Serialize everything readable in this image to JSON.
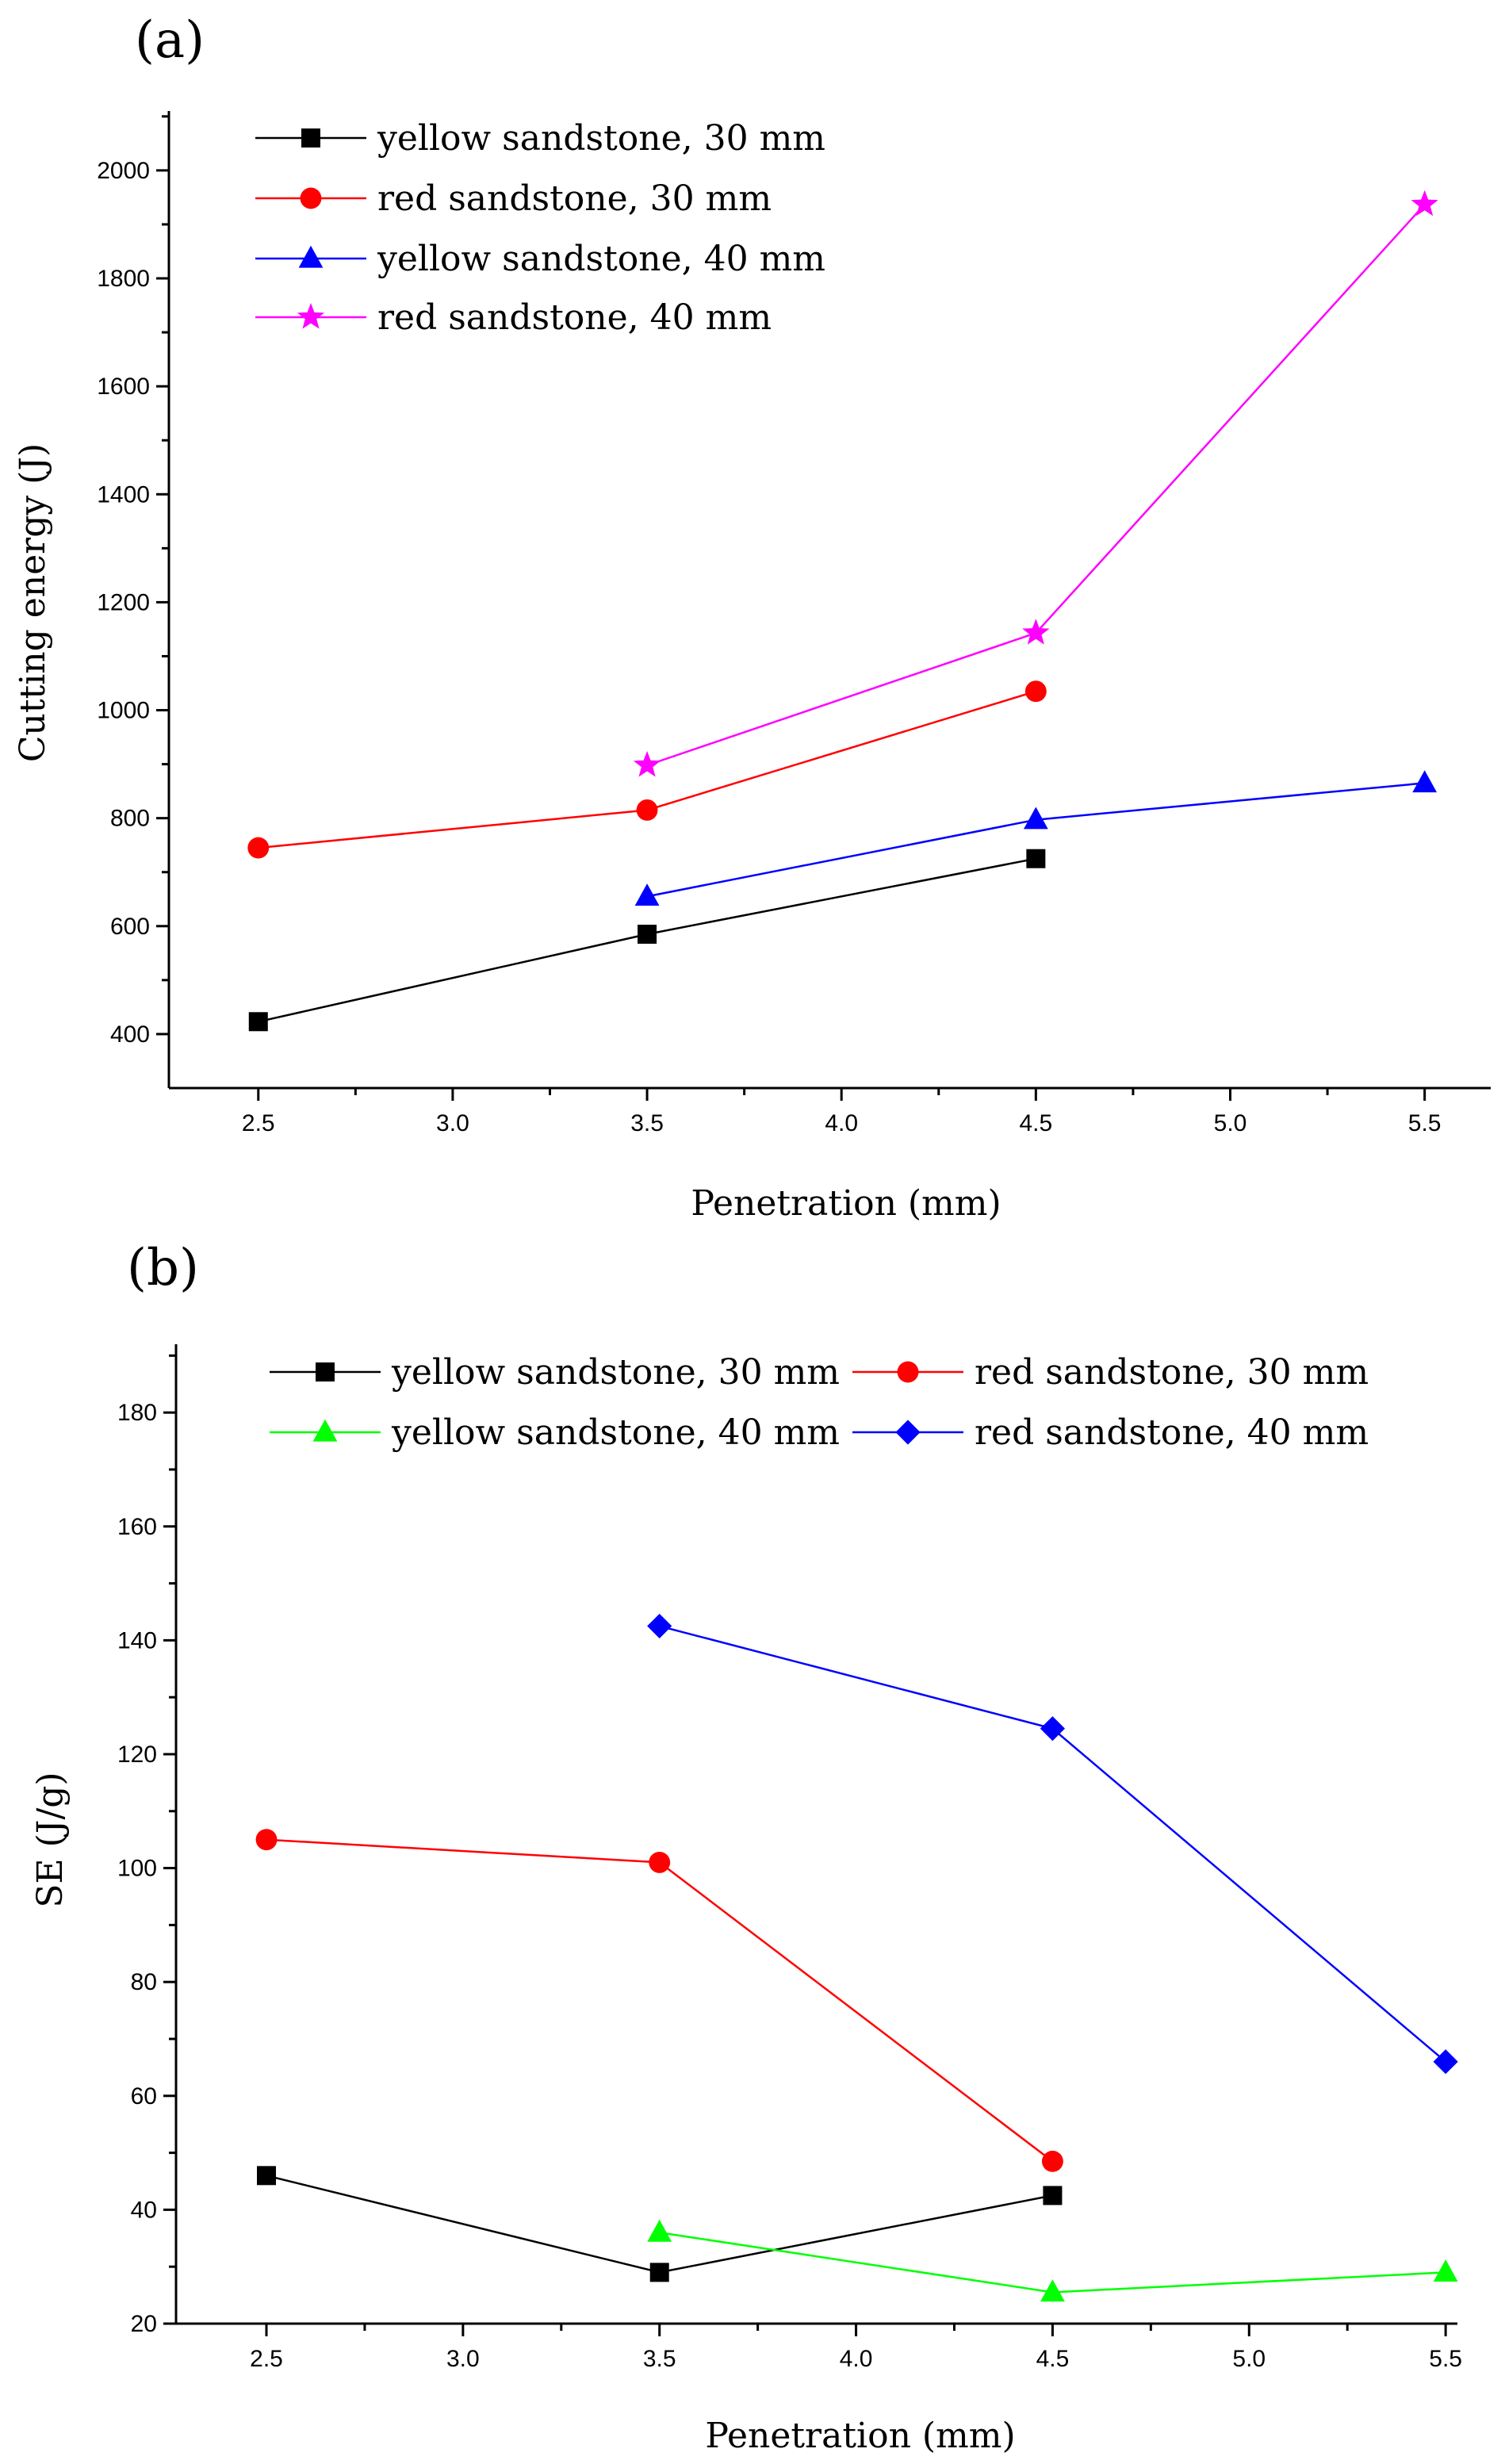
{
  "chart_data": [
    {
      "type": "line",
      "panel_label": "(a)",
      "xlabel": "Penetration (mm)",
      "ylabel": "Cutting energy (J)",
      "xlim": [
        2.27,
        5.67
      ],
      "ylim": [
        300,
        2110
      ],
      "xticks": [
        2.5,
        3.0,
        3.5,
        4.0,
        4.5,
        5.0,
        5.5
      ],
      "xtick_labels": [
        "2.5",
        "3.0",
        "3.5",
        "4.0",
        "4.5",
        "5.0",
        "5.5"
      ],
      "yticks": [
        400,
        600,
        800,
        1000,
        1200,
        1400,
        1600,
        1800,
        2000
      ],
      "ytick_labels": [
        "400",
        "600",
        "800",
        "1000",
        "1200",
        "1400",
        "1600",
        "1800",
        "2000"
      ],
      "legend_position": "top-left",
      "series": [
        {
          "name": "yellow sandstone, 30 mm",
          "color": "#000000",
          "marker": "square",
          "x": [
            2.5,
            3.5,
            4.5
          ],
          "y": [
            423,
            585,
            725
          ]
        },
        {
          "name": "red sandstone, 30 mm",
          "color": "#ff0000",
          "marker": "circle",
          "x": [
            2.5,
            3.5,
            4.5
          ],
          "y": [
            745,
            815,
            1035
          ]
        },
        {
          "name": "yellow sandstone, 40 mm",
          "color": "#0000ff",
          "marker": "triangle",
          "x": [
            3.5,
            4.5,
            5.5
          ],
          "y": [
            655,
            797,
            865
          ]
        },
        {
          "name": "red sandstone, 40 mm",
          "color": "#ff00ff",
          "marker": "star",
          "x": [
            3.5,
            4.5,
            5.5
          ],
          "y": [
            898,
            1143,
            1937
          ]
        }
      ]
    },
    {
      "type": "line",
      "panel_label": "(b)",
      "xlabel": "Penetration (mm)",
      "ylabel": "SE (J/g)",
      "xlim": [
        2.27,
        5.53
      ],
      "ylim": [
        20,
        192
      ],
      "xticks": [
        2.5,
        3.0,
        3.5,
        4.0,
        4.5,
        5.0,
        5.5
      ],
      "xtick_labels": [
        "2.5",
        "3.0",
        "3.5",
        "4.0",
        "4.5",
        "5.0",
        "5.5"
      ],
      "yticks": [
        20,
        40,
        60,
        80,
        100,
        120,
        140,
        160,
        180
      ],
      "ytick_labels": [
        "20",
        "40",
        "60",
        "80",
        "100",
        "120",
        "140",
        "160",
        "180"
      ],
      "legend_position": "top",
      "series": [
        {
          "name": "yellow sandstone, 30 mm",
          "color": "#000000",
          "marker": "square",
          "x": [
            2.5,
            3.5,
            4.5
          ],
          "y": [
            46,
            29,
            42.5
          ]
        },
        {
          "name": "red sandstone, 30 mm",
          "color": "#ff0000",
          "marker": "circle",
          "x": [
            2.5,
            3.5,
            4.5
          ],
          "y": [
            105,
            101,
            48.5
          ]
        },
        {
          "name": "yellow sandstone, 40 mm",
          "color": "#00ff00",
          "marker": "triangle",
          "x": [
            3.5,
            4.5,
            5.5
          ],
          "y": [
            36,
            25.5,
            29
          ]
        },
        {
          "name": "red sandstone, 40 mm",
          "color": "#0000ff",
          "marker": "diamond",
          "x": [
            3.5,
            4.5,
            5.5
          ],
          "y": [
            142.5,
            124.5,
            66
          ]
        }
      ]
    }
  ]
}
